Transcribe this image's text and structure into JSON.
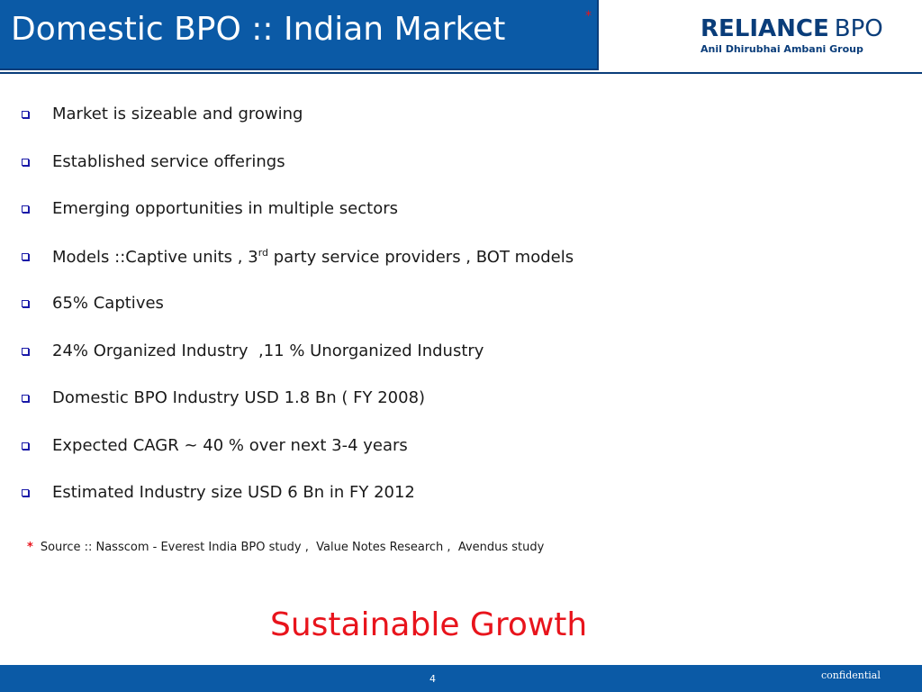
{
  "header": {
    "title": "Domestic BPO :: Indian Market",
    "title_mark": "*",
    "logo_reliance": "RELIANCE",
    "logo_bpo": "BPO",
    "logo_group": "Anil Dhirubhai Ambani Group"
  },
  "bullets": [
    {
      "text": "Market is sizeable and growing"
    },
    {
      "text": "Established service offerings"
    },
    {
      "text": "Emerging opportunities in multiple sectors"
    },
    {
      "pre": "Models ::Captive units , 3",
      "sup": "rd",
      "post": " party service providers , BOT models"
    },
    {
      "text": "65% Captives"
    },
    {
      "text": "24% Organized Industry  ,11 % Unorganized Industry"
    },
    {
      "text": "Domestic BPO Industry USD 1.8 Bn ( FY 2008)"
    },
    {
      "text": "Expected CAGR ~ 40 % over next 3-4 years"
    },
    {
      "text": "Estimated Industry size USD 6 Bn in FY 2012"
    }
  ],
  "source": {
    "mark": "*",
    "text": "Source :: Nasscom - Everest India BPO study ,  Value Notes Research ,  Avendus study"
  },
  "tagline": "Sustainable Growth",
  "footer": {
    "page_number": "4",
    "confidential": "confidential"
  },
  "colors": {
    "brand_blue": "#0b5aa6",
    "dark_blue": "#0a3d7a",
    "accent_red": "#e8141c"
  }
}
